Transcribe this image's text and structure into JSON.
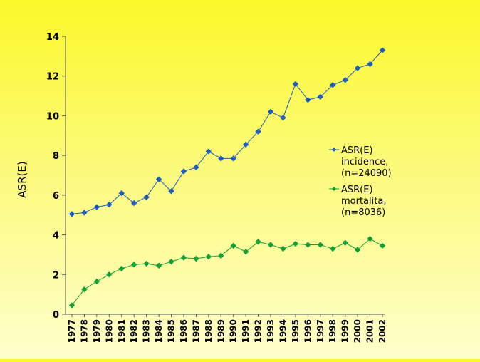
{
  "chart_data": {
    "type": "line",
    "title": "",
    "xlabel": "",
    "ylabel": "ASR(E)",
    "ylim": [
      0,
      14
    ],
    "yticks": [
      0,
      2,
      4,
      6,
      8,
      10,
      12,
      14
    ],
    "grid": false,
    "legend_position": "right",
    "x": [
      "1977",
      "1978",
      "1979",
      "1980",
      "1981",
      "1982",
      "1983",
      "1984",
      "1985",
      "1986",
      "1987",
      "1988",
      "1989",
      "1990",
      "1991",
      "1992",
      "1993",
      "1994",
      "1995",
      "1996",
      "1997",
      "1998",
      "1999",
      "2000",
      "2001",
      "2002"
    ],
    "series": [
      {
        "name": "ASR(E) incidence, (n=24090)",
        "legend_lines": [
          "ASR(E)",
          "incidence,",
          "(n=24090)"
        ],
        "color": "#1f5fbf",
        "marker": "diamond",
        "values": [
          5.05,
          5.12,
          5.4,
          5.52,
          6.1,
          5.6,
          5.9,
          6.8,
          6.2,
          7.2,
          7.4,
          8.2,
          7.85,
          7.85,
          8.55,
          9.2,
          10.2,
          9.9,
          11.6,
          10.8,
          10.95,
          11.55,
          11.8,
          12.4,
          12.6,
          13.3
        ]
      },
      {
        "name": "ASR(E) mortalita, (n=8036)",
        "legend_lines": [
          "ASR(E)",
          "mortalita,",
          "(n=8036)"
        ],
        "color": "#14a035",
        "marker": "diamond",
        "values": [
          0.45,
          1.25,
          1.65,
          2.0,
          2.3,
          2.5,
          2.55,
          2.45,
          2.65,
          2.85,
          2.8,
          2.9,
          2.95,
          3.45,
          3.15,
          3.65,
          3.5,
          3.3,
          3.55,
          3.5,
          3.5,
          3.3,
          3.6,
          3.25,
          3.8,
          3.45
        ]
      }
    ]
  }
}
